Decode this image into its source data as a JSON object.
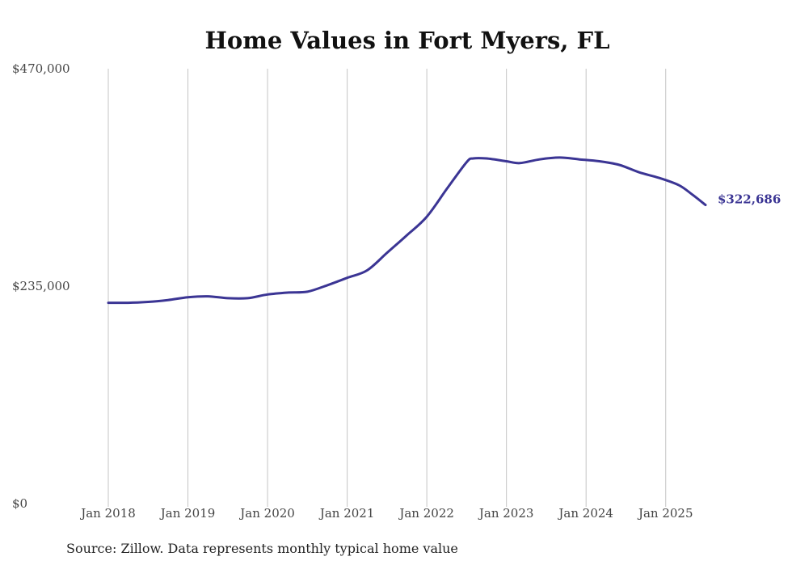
{
  "chart_data": {
    "type": "line",
    "title": "Home Values in Fort Myers, FL",
    "xlabel": "",
    "ylabel": "",
    "ylim": [
      0,
      470000
    ],
    "y_ticks": [
      "$0",
      "$235,000",
      "$470,000"
    ],
    "y_tick_values": [
      0,
      235000,
      470000
    ],
    "x_ticks": [
      "Jan 2018",
      "Jan 2019",
      "Jan 2020",
      "Jan 2021",
      "Jan 2022",
      "Jan 2023",
      "Jan 2024",
      "Jan 2025"
    ],
    "x_tick_values": [
      "2018-01",
      "2019-01",
      "2020-01",
      "2021-01",
      "2022-01",
      "2023-01",
      "2024-01",
      "2025-01"
    ],
    "xlim": [
      "2018-01",
      "2025-07"
    ],
    "grid": "vertical",
    "series": [
      {
        "color": "#3b3594",
        "points": [
          [
            "2018-01",
            217000
          ],
          [
            "2018-04",
            217000
          ],
          [
            "2018-07",
            218000
          ],
          [
            "2018-10",
            220000
          ],
          [
            "2019-01",
            223000
          ],
          [
            "2019-04",
            224000
          ],
          [
            "2019-07",
            222000
          ],
          [
            "2019-10",
            222000
          ],
          [
            "2020-01",
            226000
          ],
          [
            "2020-04",
            228000
          ],
          [
            "2020-07",
            229000
          ],
          [
            "2020-10",
            236000
          ],
          [
            "2021-01",
            244000
          ],
          [
            "2021-04",
            252000
          ],
          [
            "2021-07",
            271000
          ],
          [
            "2021-10",
            290000
          ],
          [
            "2022-01",
            310000
          ],
          [
            "2022-04",
            340000
          ],
          [
            "2022-07",
            369000
          ],
          [
            "2022-08",
            373000
          ],
          [
            "2022-10",
            373000
          ],
          [
            "2023-01",
            370000
          ],
          [
            "2023-03",
            368000
          ],
          [
            "2023-06",
            372000
          ],
          [
            "2023-09",
            374000
          ],
          [
            "2023-12",
            372000
          ],
          [
            "2024-03",
            370000
          ],
          [
            "2024-06",
            366000
          ],
          [
            "2024-09",
            358000
          ],
          [
            "2024-12",
            352000
          ],
          [
            "2025-03",
            344000
          ],
          [
            "2025-05",
            334000
          ],
          [
            "2025-07",
            322686
          ]
        ]
      }
    ],
    "end_label": "$322,686",
    "source": "Source: Zillow. Data represents monthly typical home value"
  }
}
